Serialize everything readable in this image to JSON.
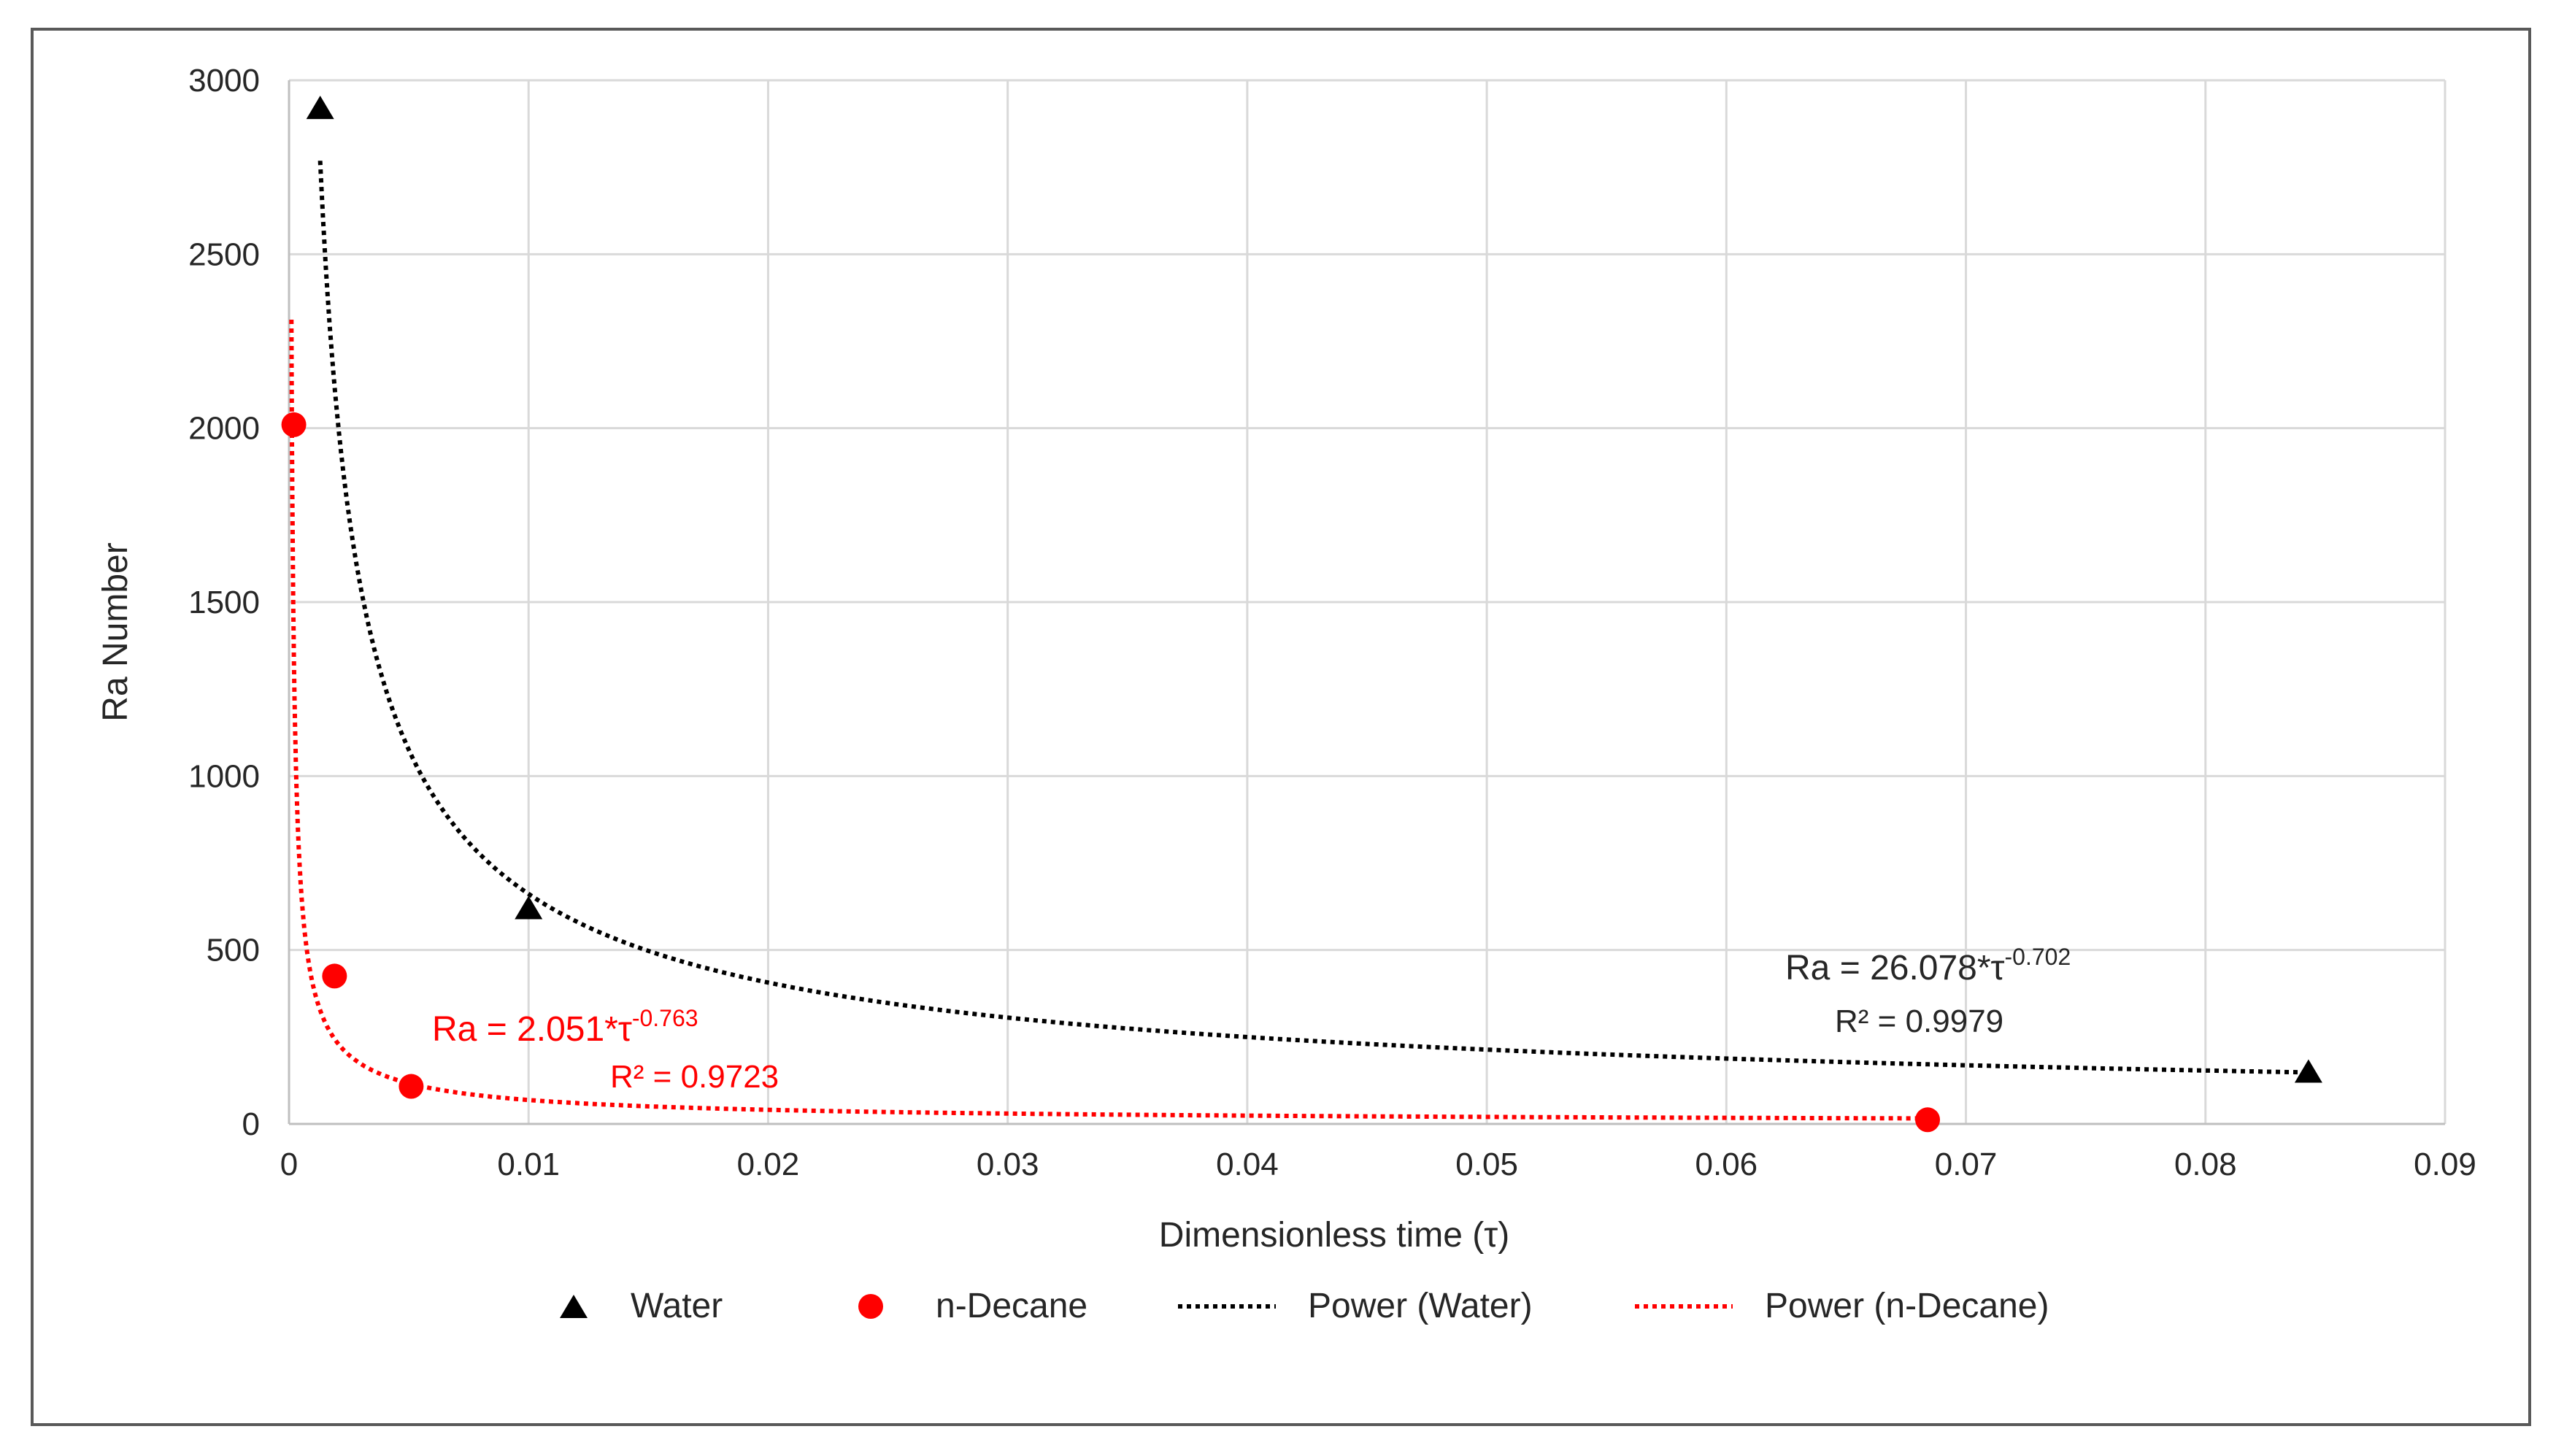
{
  "chart_data": {
    "type": "scatter",
    "xlabel": "Dimensionless time (τ)",
    "ylabel": "Ra Number",
    "xlim": [
      0,
      0.09
    ],
    "ylim": [
      0,
      3000
    ],
    "x_ticks": [
      "0",
      "0.01",
      "0.02",
      "0.03",
      "0.04",
      "0.05",
      "0.06",
      "0.07",
      "0.08",
      "0.09"
    ],
    "y_ticks": [
      "0",
      "500",
      "1000",
      "1500",
      "2000",
      "2500",
      "3000"
    ],
    "grid": true,
    "legend_position": "bottom",
    "series": [
      {
        "name": "Water",
        "marker": "triangle",
        "color": "#000000",
        "points": [
          [
            0.0013,
            2920
          ],
          [
            0.01,
            620
          ],
          [
            0.0843,
            150
          ]
        ]
      },
      {
        "name": "n-Decane",
        "marker": "circle",
        "color": "#ff0000",
        "points": [
          [
            0.0002,
            2010
          ],
          [
            0.0019,
            425
          ],
          [
            0.0051,
            108
          ],
          [
            0.0684,
            12
          ]
        ]
      }
    ],
    "trendlines": [
      {
        "name": "Power (Water)",
        "type": "power",
        "coefficient": 26.078,
        "exponent": -0.702,
        "x_range": [
          0.0013,
          0.0843
        ],
        "color": "#000000",
        "equation_text": {
          "base": "Ra = 26.078*τ",
          "exponent": "-0.702"
        },
        "r2_text": "R² = 0.9979"
      },
      {
        "name": "Power (n-Decane)",
        "type": "power",
        "coefficient": 2.051,
        "exponent": -0.763,
        "x_range": [
          0.0001,
          0.0684
        ],
        "color": "#ff0000",
        "equation_text": {
          "base": "Ra = 2.051*τ",
          "exponent": "-0.763"
        },
        "r2_text": "R² = 0.9723"
      }
    ]
  },
  "colors": {
    "axis": "#bfbfbf",
    "grid": "#d9d9d9",
    "text": "#262626",
    "water": "#000000",
    "decane": "#ff0000",
    "frame": "#595959"
  }
}
